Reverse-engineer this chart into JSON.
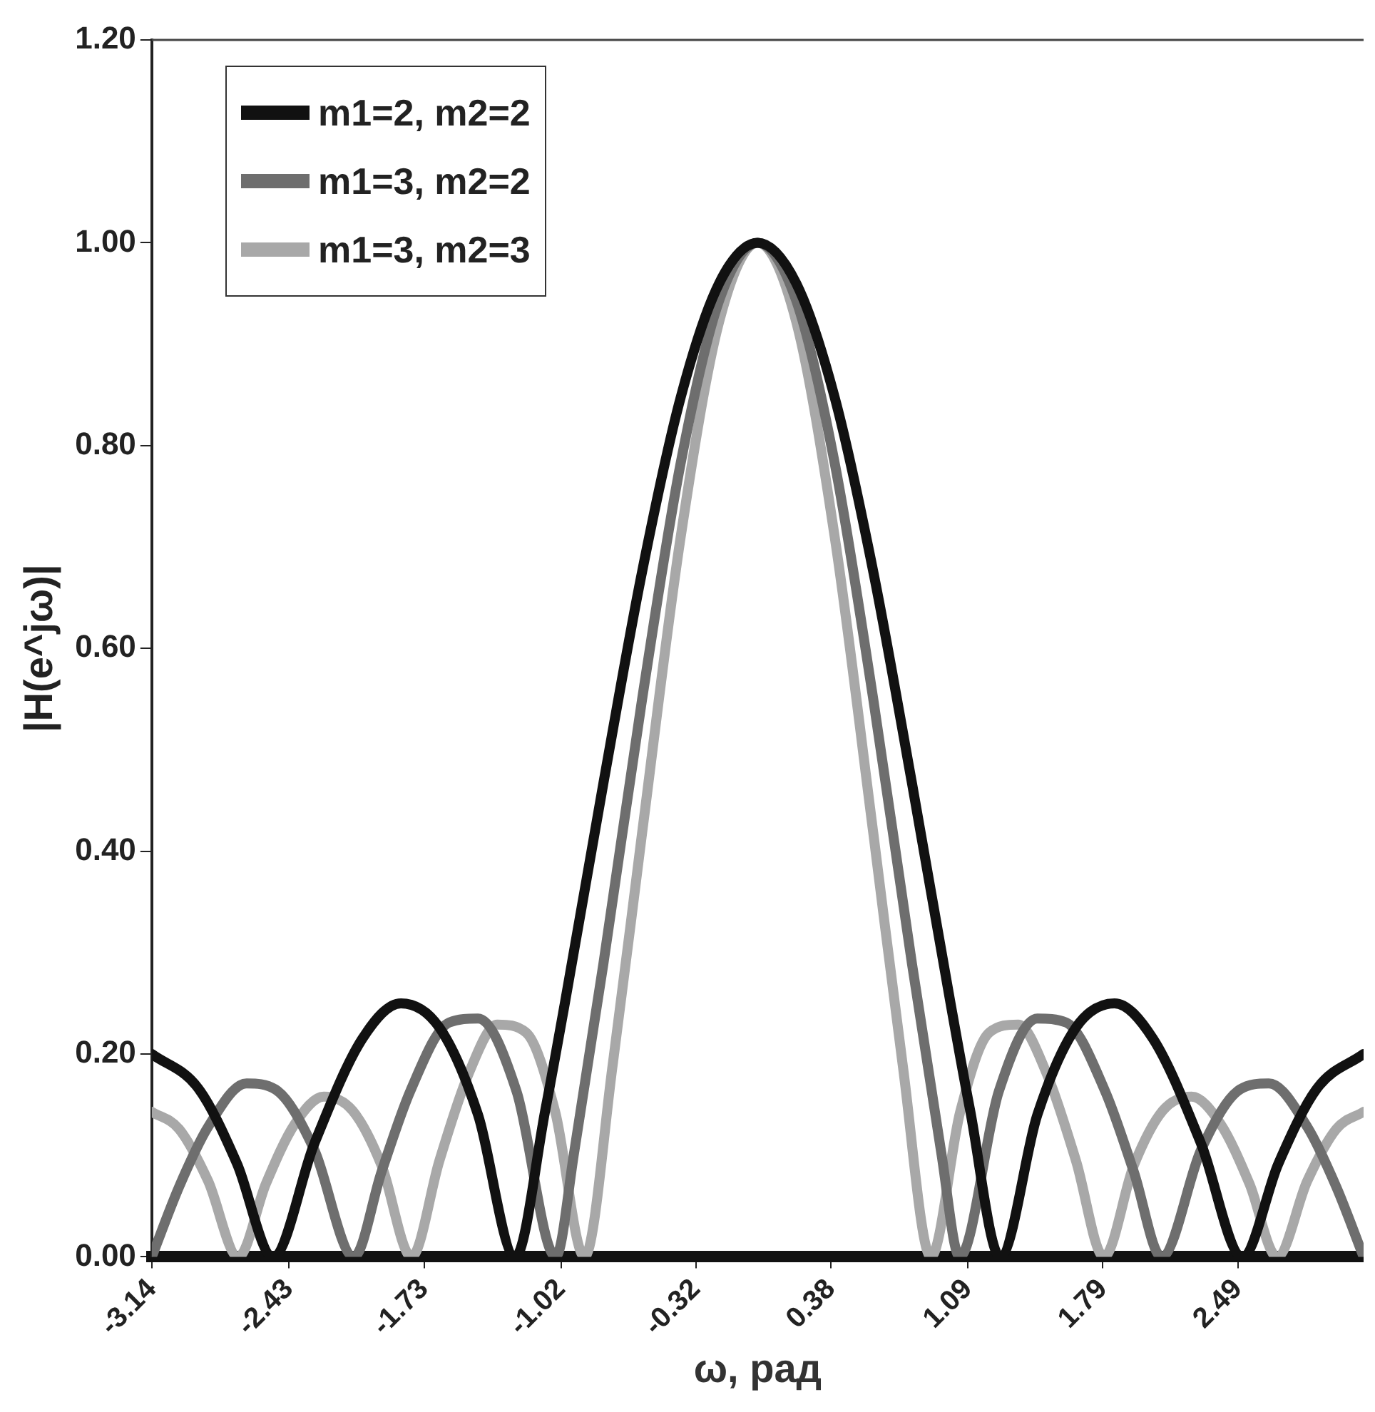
{
  "chart_data": {
    "type": "line",
    "xlabel": "ω, рад",
    "ylabel": "|H(e^jω)|",
    "xlim": [
      -3.1416,
      3.1416
    ],
    "xticks": [
      -3.14,
      -2.43,
      -1.73,
      -1.02,
      -0.32,
      0.38,
      1.09,
      1.79,
      2.49
    ],
    "ylim": [
      0,
      1.2
    ],
    "yticks": [
      {
        "value": 0,
        "label": "0.00"
      },
      {
        "value": 0.2,
        "label": "0.20"
      },
      {
        "value": 0.4,
        "label": "0.40"
      },
      {
        "value": 0.6,
        "label": "0.60"
      },
      {
        "value": 0.8,
        "label": "0.80"
      },
      {
        "value": 1,
        "label": "1.00"
      },
      {
        "value": 1.2,
        "label": "1.20"
      }
    ],
    "grid": false,
    "legend": "top left",
    "marker": "none",
    "line_style": "solid",
    "series": [
      {
        "name": "m1=2, m2=2",
        "color": "#111111",
        "x": [
          -3.1416,
          -2.9,
          -2.7,
          -2.513,
          -2.3,
          -2.05,
          -1.85,
          -1.65,
          -1.45,
          -1.257,
          -1.1,
          -1.0,
          -0.8,
          -0.6,
          -0.4,
          -0.2,
          0,
          0.2,
          0.4,
          0.6,
          0.8,
          1.0,
          1.1,
          1.257,
          1.45,
          1.65,
          1.85,
          2.05,
          2.3,
          2.513,
          2.7,
          2.9,
          3.1416
        ],
        "values": [
          0.2,
          0.166,
          0.092,
          0,
          0.111,
          0.215,
          0.25,
          0.226,
          0.14,
          0,
          0.146,
          0.25,
          0.467,
          0.675,
          0.847,
          0.96,
          1,
          0.96,
          0.847,
          0.675,
          0.467,
          0.25,
          0.146,
          0,
          0.14,
          0.226,
          0.25,
          0.215,
          0.111,
          0,
          0.092,
          0.166,
          0.2
        ]
      },
      {
        "name": "m1=3, m2=2",
        "color": "#6e6e6e",
        "x": [
          -3.1416,
          -3.0,
          -2.85,
          -2.65,
          -2.5,
          -2.3,
          -2.094,
          -1.95,
          -1.8,
          -1.6,
          -1.45,
          -1.25,
          -1.047,
          -0.95,
          -0.8,
          -0.6,
          -0.4,
          -0.2,
          0,
          0.2,
          0.4,
          0.6,
          0.8,
          0.95,
          1.047,
          1.25,
          1.45,
          1.6,
          1.8,
          1.95,
          2.094,
          2.3,
          2.5,
          2.65,
          2.85,
          3.0,
          3.1416
        ],
        "values": [
          0,
          0.069,
          0.128,
          0.171,
          0.165,
          0.106,
          0,
          0.084,
          0.164,
          0.231,
          0.235,
          0.163,
          0,
          0.105,
          0.289,
          0.549,
          0.782,
          0.943,
          1,
          0.943,
          0.782,
          0.549,
          0.289,
          0.105,
          0,
          0.163,
          0.235,
          0.231,
          0.164,
          0.084,
          0,
          0.106,
          0.165,
          0.171,
          0.128,
          0.069,
          0
        ]
      },
      {
        "name": "m1=3, m2=3",
        "color": "#a8a8a8",
        "x": [
          -3.1416,
          -3.0,
          -2.85,
          -2.693,
          -2.55,
          -2.4,
          -2.25,
          -2.1,
          -1.95,
          -1.795,
          -1.65,
          -1.5,
          -1.35,
          -1.2,
          -1.05,
          -0.898,
          -0.75,
          -0.6,
          -0.4,
          -0.2,
          0,
          0.2,
          0.4,
          0.6,
          0.75,
          0.898,
          1.05,
          1.2,
          1.35,
          1.5,
          1.65,
          1.795,
          1.95,
          2.1,
          2.25,
          2.4,
          2.55,
          2.693,
          2.85,
          3.0,
          3.1416
        ],
        "values": [
          0.143,
          0.126,
          0.075,
          0,
          0.072,
          0.131,
          0.158,
          0.144,
          0.09,
          0,
          0.095,
          0.18,
          0.229,
          0.221,
          0.143,
          0,
          0.192,
          0.417,
          0.709,
          0.922,
          1,
          0.922,
          0.709,
          0.417,
          0.192,
          0,
          0.143,
          0.221,
          0.229,
          0.18,
          0.095,
          0,
          0.09,
          0.144,
          0.158,
          0.131,
          0.072,
          0,
          0.075,
          0.126,
          0.143
        ]
      }
    ]
  }
}
